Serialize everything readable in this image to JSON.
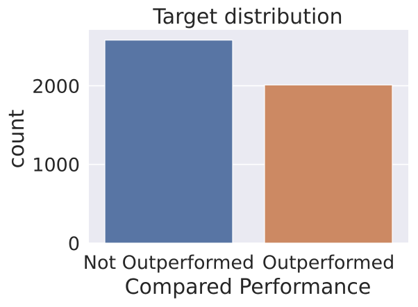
{
  "chart_data": {
    "type": "bar",
    "title": "Target distribution",
    "xlabel": "Compared Performance",
    "ylabel": "count",
    "categories": [
      "Not Outperformed",
      "Outperformed"
    ],
    "values": [
      2580,
      2010
    ],
    "colors": [
      "#5875a4",
      "#cc8963"
    ],
    "ylim": [
      0,
      2710
    ],
    "yticks": [
      0,
      1000,
      2000
    ],
    "ytick_labels": [
      "0",
      "1000",
      "2000"
    ],
    "grid": true,
    "background": "#eaeaf2",
    "grid_color": "#ffffff"
  }
}
